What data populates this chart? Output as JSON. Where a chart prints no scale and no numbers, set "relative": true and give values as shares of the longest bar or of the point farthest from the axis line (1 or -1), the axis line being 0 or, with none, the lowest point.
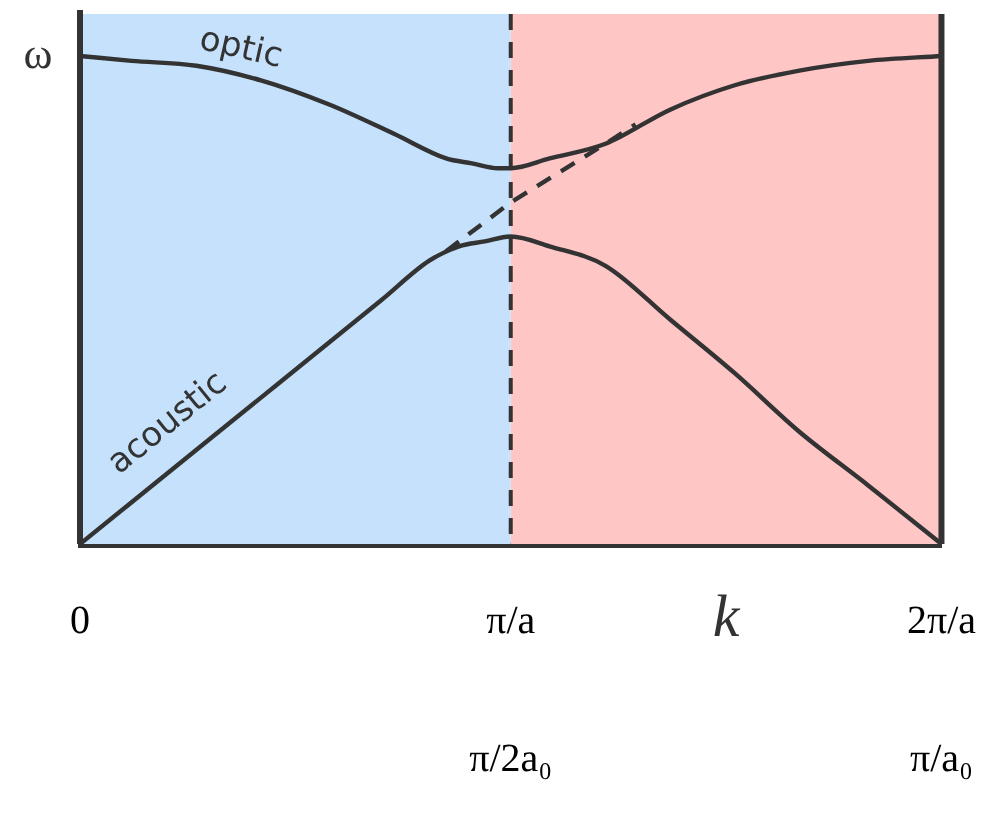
{
  "chart_data": {
    "type": "line",
    "xlabel": "k",
    "ylabel": "ω",
    "relative": true,
    "xlim": [
      0,
      2
    ],
    "xticks": [
      0,
      {
        "value": 1,
        "label": "π/a"
      },
      {
        "value": 2,
        "label": "2π/a"
      }
    ],
    "annotations": [
      "π/2a₀",
      "π/a₀"
    ],
    "series": [
      {
        "name": "optic",
        "color": "#333333",
        "x": [
          0,
          0.12,
          0.27,
          0.42,
          0.58,
          0.73,
          0.85,
          0.91,
          0.97,
          1.0,
          1.09,
          1.22,
          1.37,
          1.52,
          1.67,
          1.83,
          2
        ],
        "values": [
          1.0,
          0.99,
          0.98,
          0.95,
          0.9,
          0.84,
          0.79,
          0.78,
          0.77,
          0.77,
          0.79,
          0.82,
          0.89,
          0.94,
          0.97,
          0.99,
          1.0
        ]
      },
      {
        "name": "acoustic",
        "color": "#333333",
        "x": [
          0,
          0.35,
          0.7,
          0.81,
          0.88,
          0.94,
          1.0,
          1.09,
          1.22,
          1.37,
          1.52,
          1.67,
          1.83,
          2
        ],
        "values": [
          0,
          0.25,
          0.5,
          0.58,
          0.61,
          0.62,
          0.63,
          0.61,
          0.57,
          0.46,
          0.35,
          0.23,
          0.12,
          0
        ]
      },
      {
        "color": "#333333",
        "line_style": "dashed",
        "x": [
          0.85,
          1.0,
          1.22,
          1.29
        ],
        "values": [
          0.6,
          0.7,
          0.82,
          0.86
        ]
      }
    ],
    "bands": [
      {
        "axis": "x",
        "from": 0,
        "to": 1,
        "color": "#c5e1fb"
      },
      {
        "axis": "x",
        "from": 1,
        "to": 2,
        "color": "#ffc6c6"
      }
    ],
    "ref_lines": [
      {
        "axis": "x",
        "value": 1,
        "color": "#333333",
        "line_style": "dashed"
      }
    ],
    "legend": false,
    "marker": "none",
    "line_style": "solid"
  }
}
